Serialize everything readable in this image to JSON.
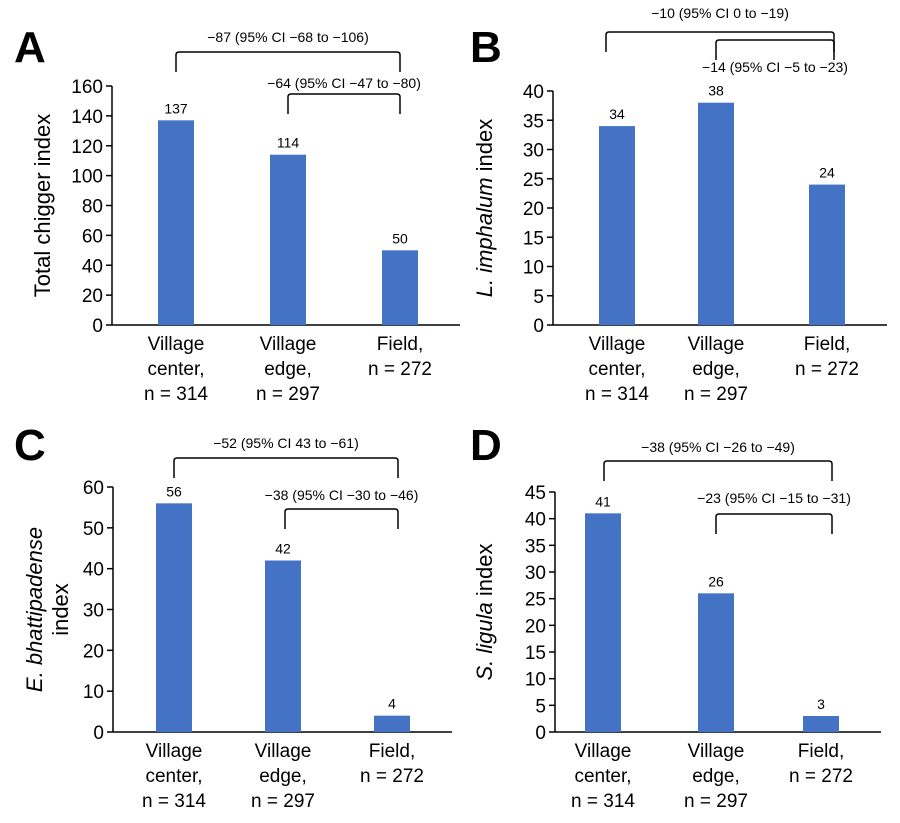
{
  "bar_color": "#4472C4",
  "chart_data": [
    {
      "type": "bar",
      "panel_label": "A",
      "ylabel_italic": "",
      "ylabel_rest": "Total chigger index",
      "ylim": [
        0,
        160
      ],
      "yticks": [
        0,
        20,
        40,
        60,
        80,
        100,
        120,
        140,
        160
      ],
      "categories": [
        [
          "Village",
          "center,",
          "n = 314"
        ],
        [
          "Village",
          "edge,",
          "n = 297"
        ],
        [
          "Field,",
          "n = 272"
        ]
      ],
      "values": [
        137,
        114,
        50
      ],
      "comparisons": [
        {
          "from": 0,
          "to": 2,
          "label": "−87 (95% CI −68 to −106)"
        },
        {
          "from": 1,
          "to": 2,
          "label": "−64 (95% CI −47 to −80)"
        }
      ]
    },
    {
      "type": "bar",
      "panel_label": "B",
      "ylabel_italic": "L. imphalum",
      "ylabel_rest": " index",
      "ylim": [
        0,
        40
      ],
      "yticks": [
        0,
        5,
        10,
        15,
        20,
        25,
        30,
        35,
        40
      ],
      "categories": [
        [
          "Village",
          "center,",
          "n = 314"
        ],
        [
          "Village",
          "edge,",
          "n = 297"
        ],
        [
          "Field,",
          "n = 272"
        ]
      ],
      "values": [
        34,
        38,
        24
      ],
      "comparisons": [
        {
          "from": 0,
          "to": 2,
          "label": "−10 (95% CI 0 to −19)"
        },
        {
          "from": 1,
          "to": 2,
          "label": "−14 (95% CI −5 to −23)"
        }
      ]
    },
    {
      "type": "bar",
      "panel_label": "C",
      "ylabel_italic": "E. bhattipadense",
      "ylabel_rest": "index",
      "ylim": [
        0,
        60
      ],
      "yticks": [
        0,
        10,
        20,
        30,
        40,
        50,
        60
      ],
      "categories": [
        [
          "Village",
          "center,",
          "n = 314"
        ],
        [
          "Village",
          "edge,",
          "n = 297"
        ],
        [
          "Field,",
          "n = 272"
        ]
      ],
      "values": [
        56,
        42,
        4
      ],
      "comparisons": [
        {
          "from": 0,
          "to": 2,
          "label": "−52 (95% CI 43 to −61)"
        },
        {
          "from": 1,
          "to": 2,
          "label": "−38 (95% CI −30 to −46)"
        }
      ]
    },
    {
      "type": "bar",
      "panel_label": "D",
      "ylabel_italic": "S. ligula",
      "ylabel_rest": " index",
      "ylim": [
        0,
        45
      ],
      "yticks": [
        0,
        5,
        10,
        15,
        20,
        25,
        30,
        35,
        40,
        45
      ],
      "categories": [
        [
          "Village",
          "center,",
          "n = 314"
        ],
        [
          "Village",
          "edge,",
          "n = 297"
        ],
        [
          "Field,",
          "n = 272"
        ]
      ],
      "values": [
        41,
        26,
        3
      ],
      "comparisons": [
        {
          "from": 0,
          "to": 2,
          "label": "−38 (95% CI −26 to −49)"
        },
        {
          "from": 1,
          "to": 2,
          "label": "−23 (95% CI −15 to −31)"
        }
      ]
    }
  ]
}
